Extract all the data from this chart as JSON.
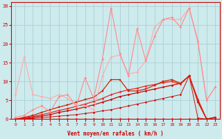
{
  "background_color": "#cdeaed",
  "grid_color": "#aad0d4",
  "xlabel": "Vent moyen/en rafales ( km/h )",
  "xlim": [
    -0.5,
    23.5
  ],
  "ylim": [
    0,
    31
  ],
  "yticks": [
    0,
    5,
    10,
    15,
    20,
    25,
    30
  ],
  "xticks": [
    0,
    1,
    2,
    3,
    4,
    5,
    6,
    7,
    8,
    9,
    10,
    11,
    12,
    13,
    14,
    15,
    16,
    17,
    18,
    19,
    20,
    21,
    22,
    23
  ],
  "lines": [
    {
      "x": [
        0,
        1,
        2,
        3,
        4,
        5,
        6,
        7,
        8,
        9,
        10,
        11,
        12,
        13,
        14,
        15,
        16,
        17,
        18,
        19,
        20,
        21,
        22,
        23
      ],
      "y": [
        0,
        0,
        0,
        0,
        0,
        0,
        0,
        0,
        0,
        0,
        0,
        0,
        0,
        0,
        0,
        0,
        0,
        0,
        0,
        0,
        0,
        0,
        0,
        0
      ],
      "color": "#dd1111",
      "marker": "D",
      "markersize": 1.5,
      "linewidth": 0.7,
      "alpha": 1.0
    },
    {
      "x": [
        0,
        1,
        2,
        3,
        4,
        5,
        6,
        7,
        8,
        9,
        10,
        11,
        12,
        13,
        14,
        15,
        16,
        17,
        18,
        19,
        20,
        21,
        22,
        23
      ],
      "y": [
        0,
        0.1,
        0.2,
        0.4,
        0.6,
        0.8,
        1.0,
        1.2,
        1.5,
        1.8,
        2.2,
        2.5,
        3.0,
        3.5,
        4.0,
        4.5,
        5.0,
        5.5,
        6.0,
        6.5,
        11.5,
        0.3,
        0,
        0
      ],
      "color": "#cc1111",
      "marker": "D",
      "markersize": 1.5,
      "linewidth": 0.7,
      "alpha": 1.0
    },
    {
      "x": [
        0,
        1,
        2,
        3,
        4,
        5,
        6,
        7,
        8,
        9,
        10,
        11,
        12,
        13,
        14,
        15,
        16,
        17,
        18,
        19,
        20,
        21,
        22,
        23
      ],
      "y": [
        0,
        0.2,
        0.5,
        0.8,
        1.2,
        1.8,
        2.2,
        2.7,
        3.2,
        3.8,
        4.5,
        5.2,
        6.0,
        6.5,
        7.0,
        7.5,
        8.0,
        8.5,
        9.0,
        9.5,
        11.5,
        5.0,
        0,
        0.5
      ],
      "color": "#cc0000",
      "marker": "D",
      "markersize": 1.5,
      "linewidth": 0.9,
      "alpha": 1.0
    },
    {
      "x": [
        0,
        1,
        2,
        3,
        4,
        5,
        6,
        7,
        8,
        9,
        10,
        11,
        12,
        13,
        14,
        15,
        16,
        17,
        18,
        19,
        20,
        21,
        22,
        23
      ],
      "y": [
        0,
        0.3,
        0.7,
        1.2,
        1.7,
        2.3,
        2.8,
        3.4,
        4.0,
        4.7,
        5.5,
        6.5,
        7.2,
        7.8,
        8.2,
        8.8,
        9.2,
        9.7,
        10.0,
        9.3,
        11.5,
        5.3,
        0,
        0.4
      ],
      "color": "#ee2222",
      "marker": "D",
      "markersize": 1.5,
      "linewidth": 0.9,
      "alpha": 1.0
    },
    {
      "x": [
        0,
        1,
        2,
        3,
        4,
        5,
        6,
        7,
        8,
        9,
        10,
        11,
        12,
        13,
        14,
        15,
        16,
        17,
        18,
        19,
        20,
        21,
        22,
        23
      ],
      "y": [
        0,
        0.5,
        1.0,
        1.8,
        2.5,
        3.2,
        3.8,
        4.5,
        5.2,
        5.8,
        7.5,
        10.5,
        10.5,
        7.5,
        7.5,
        8.0,
        9.0,
        10.0,
        10.5,
        9.5,
        11.5,
        4.5,
        0,
        0.5
      ],
      "color": "#cc2200",
      "marker": "s",
      "markersize": 1.5,
      "linewidth": 0.9,
      "alpha": 1.0
    },
    {
      "x": [
        0,
        1,
        2,
        3,
        4,
        5,
        6,
        7,
        8,
        9,
        10,
        11,
        12,
        13,
        14,
        15,
        16,
        17,
        18,
        19,
        20,
        21,
        22,
        23
      ],
      "y": [
        6.5,
        16.5,
        6.5,
        6.0,
        5.5,
        6.5,
        5.5,
        3.5,
        3.5,
        2.5,
        11.5,
        16.5,
        17.0,
        12.0,
        12.5,
        15.5,
        24.5,
        26.5,
        26.5,
        26.5,
        29.5,
        21.0,
        5.0,
        8.5
      ],
      "color": "#ffaaaa",
      "marker": "D",
      "markersize": 1.5,
      "linewidth": 0.8,
      "alpha": 1.0
    },
    {
      "x": [
        0,
        1,
        2,
        3,
        4,
        5,
        6,
        7,
        8,
        9,
        10,
        11,
        12,
        13,
        14,
        15,
        16,
        17,
        18,
        19,
        20,
        21,
        22,
        23
      ],
      "y": [
        0.5,
        1.0,
        2.5,
        3.5,
        2.0,
        6.0,
        6.5,
        3.5,
        11.0,
        5.5,
        16.0,
        29.5,
        17.5,
        11.5,
        24.0,
        15.5,
        22.0,
        26.5,
        27.0,
        24.5,
        29.5,
        20.5,
        5.0,
        8.5
      ],
      "color": "#ff8888",
      "marker": "D",
      "markersize": 1.5,
      "linewidth": 0.8,
      "alpha": 1.0
    }
  ]
}
